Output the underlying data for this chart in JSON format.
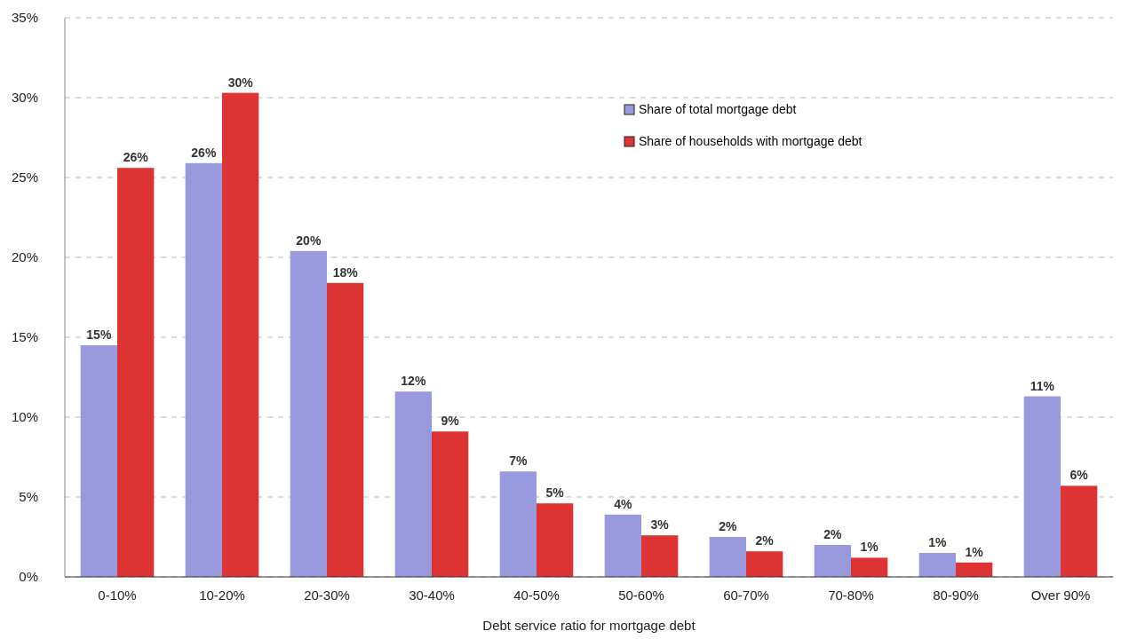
{
  "chart_data": {
    "type": "bar",
    "xlabel": "Debt service ratio for mortgage debt",
    "categories": [
      "0-10%",
      "10-20%",
      "20-30%",
      "30-40%",
      "40-50%",
      "50-60%",
      "60-70%",
      "70-80%",
      "80-90%",
      "Over 90%"
    ],
    "series": [
      {
        "name": "Share of total mortgage debt",
        "color": "#9999dd",
        "values": [
          14.5,
          25.9,
          20.4,
          11.6,
          6.6,
          3.9,
          2.5,
          2.0,
          1.5,
          11.3
        ],
        "value_labels": [
          "15%",
          "26%",
          "20%",
          "12%",
          "7%",
          "4%",
          "2%",
          "2%",
          "1%",
          "11%"
        ]
      },
      {
        "name": "Share of households with mortgage debt",
        "color": "#dd3333",
        "values": [
          25.6,
          30.3,
          18.4,
          9.1,
          4.6,
          2.6,
          1.6,
          1.2,
          0.9,
          5.7
        ],
        "value_labels": [
          "26%",
          "30%",
          "18%",
          "9%",
          "5%",
          "3%",
          "2%",
          "1%",
          "1%",
          "6%"
        ]
      }
    ],
    "ylim": [
      0,
      35
    ],
    "yticks": [
      {
        "value": 0,
        "label": "0%"
      },
      {
        "value": 5,
        "label": "5%"
      },
      {
        "value": 10,
        "label": "10%"
      },
      {
        "value": 15,
        "label": "15%"
      },
      {
        "value": 20,
        "label": "20%"
      },
      {
        "value": 25,
        "label": "25%"
      },
      {
        "value": 30,
        "label": "30%"
      },
      {
        "value": 35,
        "label": "35%"
      }
    ],
    "grid": "y",
    "legend": "top right"
  }
}
